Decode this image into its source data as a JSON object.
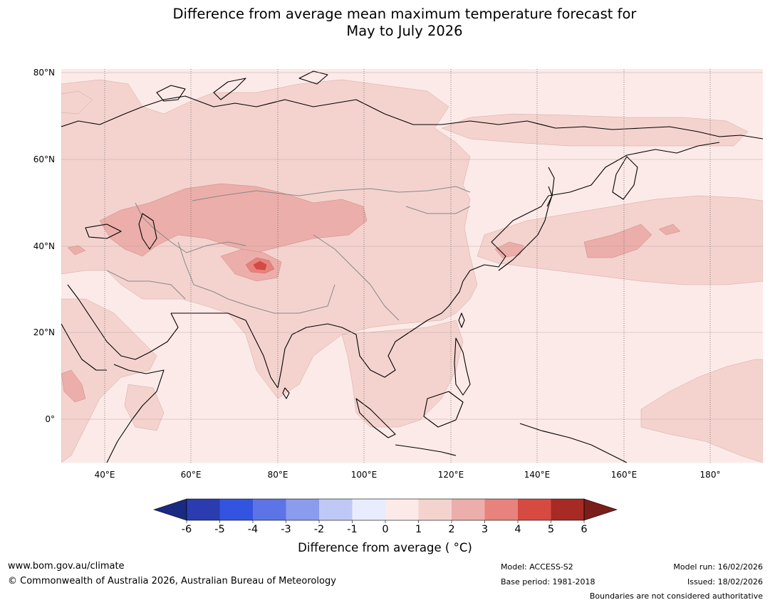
{
  "title": {
    "line1": "Difference from average mean maximum temperature forecast for",
    "line2": "May to July 2026"
  },
  "map": {
    "lat_labels": [
      "80°N",
      "60°N",
      "40°N",
      "20°N",
      "0°"
    ],
    "lon_labels": [
      "40°E",
      "60°E",
      "80°E",
      "100°E",
      "120°E",
      "140°E",
      "160°E",
      "180°"
    ],
    "ocean_color": "#fceae8",
    "colors": {
      "c0_1": "#fceae8",
      "c1_2": "#f4d3cf",
      "c2_3": "#ecaeaa",
      "c3_4": "#e8827c",
      "c4_5": "#d64a42"
    }
  },
  "colorbar": {
    "ticks": [
      "-6",
      "-5",
      "-4",
      "-3",
      "-2",
      "-1",
      "0",
      "1",
      "2",
      "3",
      "4",
      "5",
      "6"
    ],
    "colors": [
      "#1a2a80",
      "#2a3cb0",
      "#3354e0",
      "#5c74e6",
      "#8b9cee",
      "#c0c8f6",
      "#e8ecfc",
      "#fceae8",
      "#f4d3cf",
      "#ecaeaa",
      "#e8827c",
      "#d64a42",
      "#a82a24",
      "#7a1e1a"
    ],
    "label": "Difference from average ( °C)"
  },
  "footer": {
    "url": "www.bom.gov.au/climate",
    "copyright": "© Commonwealth of Australia 2026, Australian Bureau of Meteorology",
    "model": "Model: ACCESS-S2",
    "base_period": "Base period: 1981-2018",
    "model_run": "Model run: 16/02/2026",
    "issued": "Issued: 18/02/2026",
    "disclaimer": "Boundaries are not considered authoritative"
  }
}
